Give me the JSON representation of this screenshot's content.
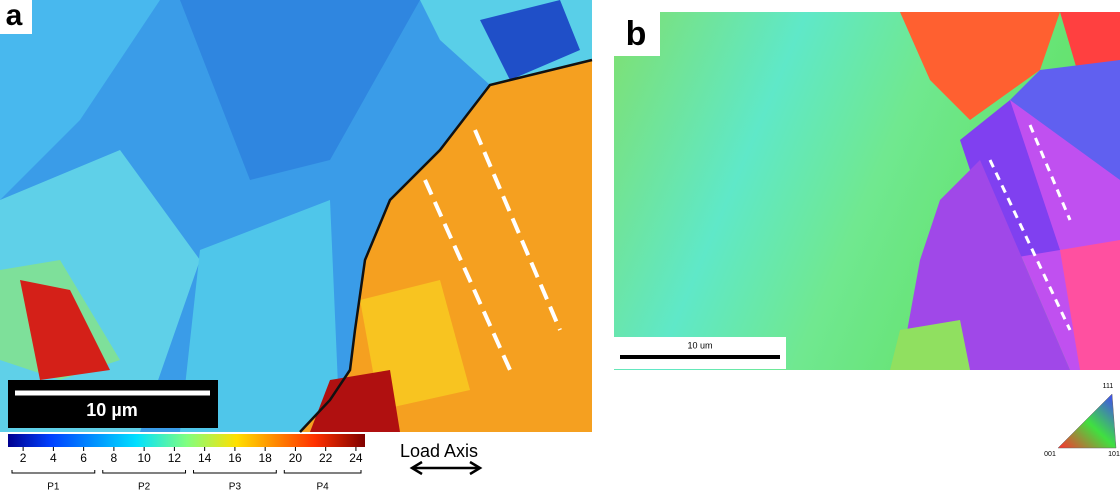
{
  "panel_a": {
    "label": "a",
    "scale_bar": "10 µm",
    "colorbar": {
      "colormap": "jet",
      "lim": [
        1,
        24.6
      ],
      "ticks": [
        2,
        4,
        6,
        8,
        10,
        12,
        14,
        16,
        18,
        20,
        22,
        24
      ],
      "groups": [
        {
          "name": "P1",
          "range": [
            1,
            7
          ]
        },
        {
          "name": "P2",
          "range": [
            7,
            13
          ]
        },
        {
          "name": "P3",
          "range": [
            13,
            19
          ]
        },
        {
          "name": "P4",
          "range": [
            19,
            24.6
          ]
        }
      ]
    },
    "load_axis": "Load Axis"
  },
  "panel_b": {
    "label": "b",
    "scale_bar": "10 um",
    "ipf_corners": [
      "111",
      "001",
      "101"
    ]
  }
}
